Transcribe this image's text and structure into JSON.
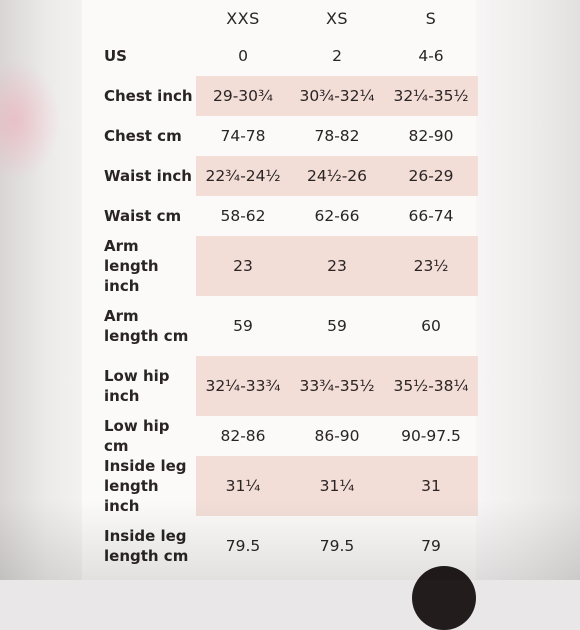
{
  "size_chart": {
    "sizes": [
      "XXS",
      "XS",
      "S"
    ],
    "rows": [
      {
        "label": "US",
        "values": [
          "0",
          "2",
          "4-6"
        ],
        "shaded": false
      },
      {
        "label": "Chest inch",
        "values": [
          "29-30¾",
          "30¾-32¼",
          "32¼-35½"
        ],
        "shaded": true
      },
      {
        "label": "Chest cm",
        "values": [
          "74-78",
          "78-82",
          "82-90"
        ],
        "shaded": false
      },
      {
        "label": "Waist inch",
        "values": [
          "22¾-24½",
          "24½-26",
          "26-29"
        ],
        "shaded": true
      },
      {
        "label": "Waist cm",
        "values": [
          "58-62",
          "62-66",
          "66-74"
        ],
        "shaded": false
      },
      {
        "label": "Arm length inch",
        "values": [
          "23",
          "23",
          "23½"
        ],
        "shaded": true
      },
      {
        "label": "Arm length cm",
        "values": [
          "59",
          "59",
          "60"
        ],
        "shaded": false
      },
      {
        "label": "Low hip inch",
        "values": [
          "32¼-33¾",
          "33¾-35½",
          "35½-38¼"
        ],
        "shaded": true
      },
      {
        "label": "Low hip cm",
        "values": [
          "82-86",
          "86-90",
          "90-97.5"
        ],
        "shaded": false
      },
      {
        "label": "Inside leg length inch",
        "values": [
          "31¼",
          "31¼",
          "31"
        ],
        "shaded": true
      },
      {
        "label": "Inside leg length cm",
        "values": [
          "79.5",
          "79.5",
          "79"
        ],
        "shaded": false
      }
    ]
  },
  "colors": {
    "shaded_row": "#f2ddd7",
    "text": "#2a2424",
    "card": "#fbfaf9"
  }
}
